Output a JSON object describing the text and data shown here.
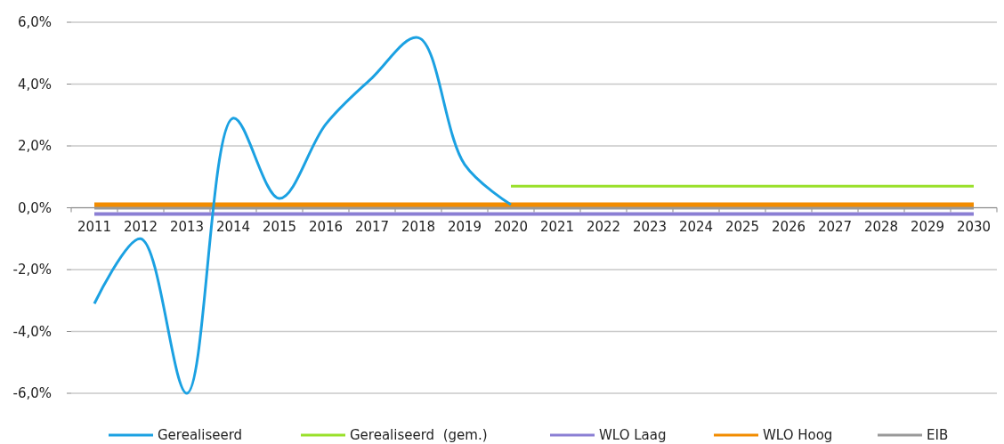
{
  "chart_data": {
    "type": "line",
    "categories": [
      "2011",
      "2012",
      "2013",
      "2014",
      "2015",
      "2016",
      "2017",
      "2018",
      "2019",
      "2020",
      "2021",
      "2022",
      "2023",
      "2024",
      "2025",
      "2026",
      "2027",
      "2028",
      "2029",
      "2030"
    ],
    "series": [
      {
        "name": "Gerealiseerd",
        "color": "#1ba1e2",
        "values": [
          -3.1,
          -1.0,
          -6.0,
          2.9,
          0.3,
          2.7,
          4.2,
          5.5,
          1.4,
          0.1,
          null,
          null,
          null,
          null,
          null,
          null,
          null,
          null,
          null,
          null
        ]
      },
      {
        "name": "Gerealiseerd  (gem.)",
        "color": "#99e02a",
        "values": [
          null,
          null,
          null,
          null,
          null,
          null,
          null,
          null,
          null,
          0.7,
          0.7,
          0.7,
          0.7,
          0.7,
          0.7,
          0.7,
          0.7,
          0.7,
          0.7,
          0.7
        ]
      },
      {
        "name": "WLO Laag",
        "color": "#8b7fd4",
        "values": [
          -0.2,
          -0.2,
          -0.2,
          -0.2,
          -0.2,
          -0.2,
          -0.2,
          -0.2,
          -0.2,
          -0.2,
          -0.2,
          -0.2,
          -0.2,
          -0.2,
          -0.2,
          -0.2,
          -0.2,
          -0.2,
          -0.2,
          -0.2
        ]
      },
      {
        "name": "WLO Hoog",
        "color": "#f28c00",
        "values": [
          0.1,
          0.1,
          0.1,
          0.1,
          0.1,
          0.1,
          0.1,
          0.1,
          0.1,
          0.1,
          0.1,
          0.1,
          0.1,
          0.1,
          0.1,
          0.1,
          0.1,
          0.1,
          0.1,
          0.1
        ]
      },
      {
        "name": "EIB",
        "color": "#999999",
        "values": [
          0.0,
          0.0,
          0.0,
          0.0,
          0.0,
          0.0,
          0.0,
          0.0,
          0.0,
          0.0,
          0.0,
          0.0,
          0.0,
          0.0,
          0.0,
          0.0,
          0.0,
          0.0,
          0.0,
          0.0
        ]
      }
    ],
    "ylim": [
      -6,
      6
    ],
    "yticks": [
      {
        "value": -6,
        "label": "-6,0%"
      },
      {
        "value": -4,
        "label": "-4,0%"
      },
      {
        "value": -2,
        "label": "-2,0%"
      },
      {
        "value": 0,
        "label": "0,0%"
      },
      {
        "value": 2,
        "label": "2,0%"
      },
      {
        "value": 4,
        "label": "4,0%"
      },
      {
        "value": 6,
        "label": "6,0%"
      }
    ],
    "grid": "y",
    "legend": "bottom",
    "line_style": "solid"
  }
}
